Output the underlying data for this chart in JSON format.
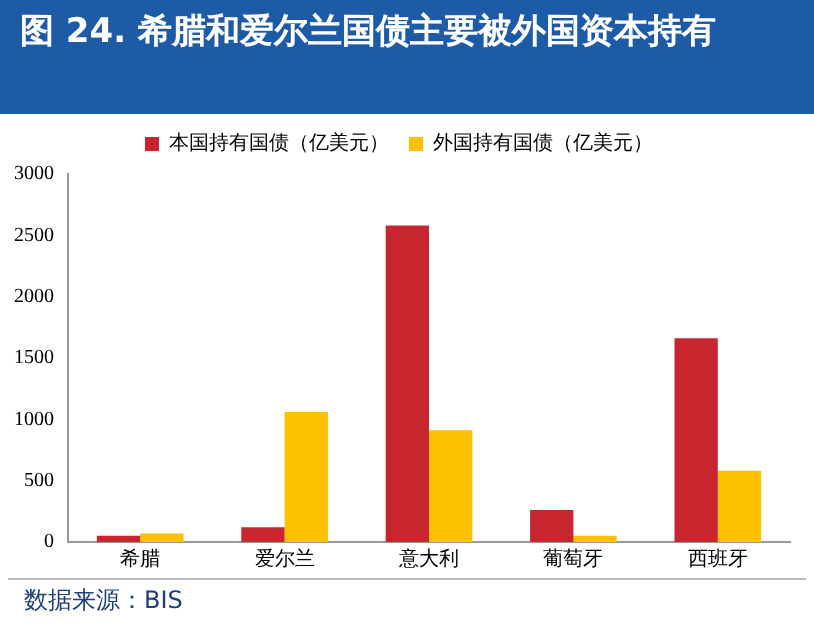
{
  "chart_data": {
    "type": "bar",
    "title": "图 24. 希腊和爱尔兰国债主要被外国资本持有",
    "categories": [
      "希腊",
      "爱尔兰",
      "意大利",
      "葡萄牙",
      "西班牙"
    ],
    "series": [
      {
        "name": "本国持有国债（亿美元）",
        "color": "#c8262e",
        "values": [
          50,
          120,
          2580,
          260,
          1660
        ]
      },
      {
        "name": "外国持有国债（亿美元）",
        "color": "#fdc100",
        "values": [
          70,
          1060,
          910,
          50,
          580
        ]
      }
    ],
    "ylim": [
      0,
      3000
    ],
    "yticks": [
      0,
      500,
      1000,
      1500,
      2000,
      2500,
      3000
    ],
    "grid": false,
    "legend": "top",
    "annotations": [
      "数据来源：BIS"
    ]
  }
}
